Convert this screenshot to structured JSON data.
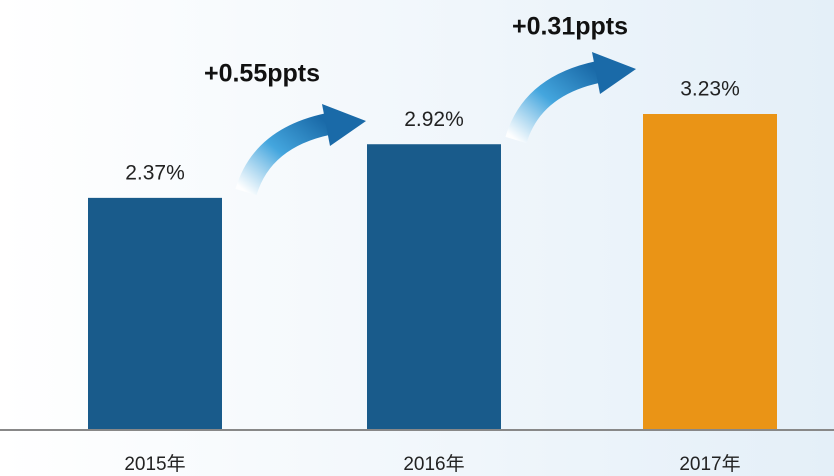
{
  "chart_data": {
    "type": "bar",
    "categories": [
      "2015年",
      "2016年",
      "2017年"
    ],
    "values": [
      2.37,
      2.92,
      3.23
    ],
    "value_labels": [
      "2.37%",
      "2.92%",
      "3.23%"
    ],
    "colors": [
      "#195b8b",
      "#195b8b",
      "#ea9416"
    ],
    "annotations": [
      "+0.55ppts",
      "+0.31ppts"
    ]
  }
}
